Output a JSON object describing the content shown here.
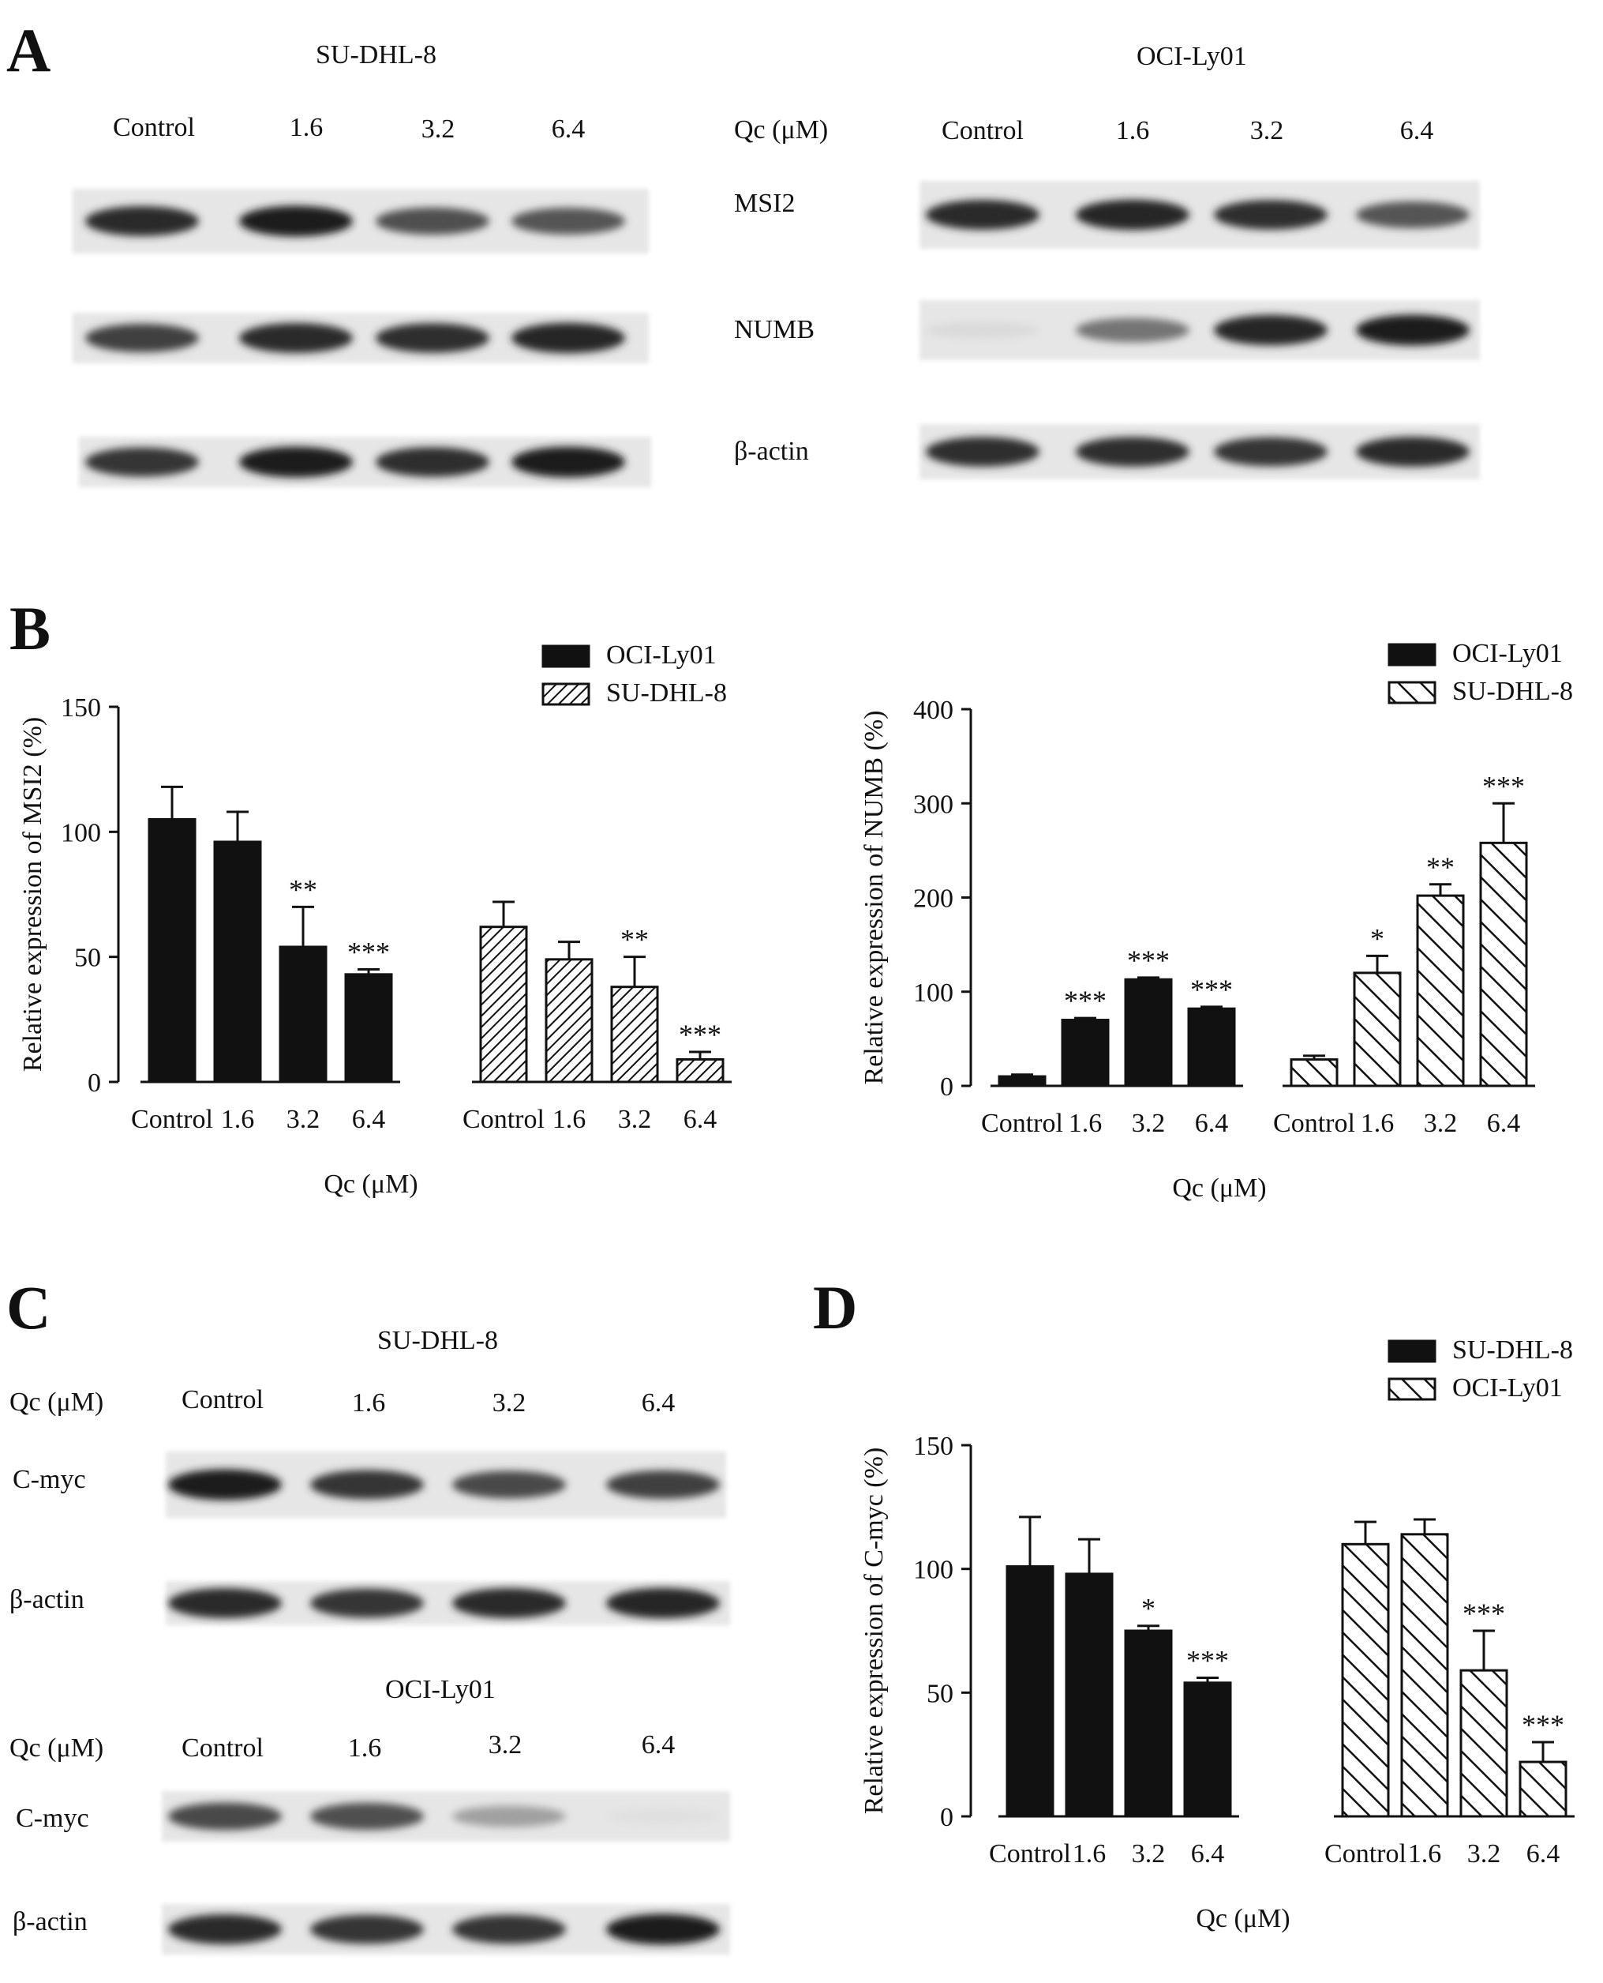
{
  "panels": {
    "A": {
      "letter": "A",
      "left": {
        "cell_line": "SU-DHL-8",
        "lanes": [
          "Control",
          "1.6",
          "3.2",
          "6.4"
        ],
        "band_intensity": {
          "MSI2": [
            0.9,
            0.95,
            0.72,
            0.7
          ],
          "NUMB": [
            0.8,
            0.9,
            0.88,
            0.92
          ],
          "beta_actin": [
            0.85,
            0.95,
            0.88,
            0.95
          ]
        }
      },
      "right": {
        "cell_line": "OCI-Ly01",
        "dose_label": "Qc (μM)",
        "lanes": [
          "Control",
          "1.6",
          "3.2",
          "6.4"
        ],
        "band_intensity": {
          "MSI2": [
            0.9,
            0.92,
            0.88,
            0.7
          ],
          "NUMB": [
            0.08,
            0.55,
            0.92,
            0.95
          ],
          "beta_actin": [
            0.88,
            0.88,
            0.85,
            0.9
          ]
        }
      },
      "proteins": [
        "MSI2",
        "NUMB",
        "β-actin"
      ]
    },
    "C": {
      "letter": "C",
      "dose_label": "Qc (μM)",
      "top": {
        "cell_line": "SU-DHL-8",
        "lanes": [
          "Control",
          "1.6",
          "3.2",
          "6.4"
        ],
        "band_intensity": {
          "C_myc": [
            0.95,
            0.85,
            0.75,
            0.8
          ],
          "beta_actin": [
            0.9,
            0.85,
            0.9,
            0.92
          ]
        }
      },
      "bottom": {
        "cell_line": "OCI-Ly01",
        "lanes": [
          "Control",
          "1.6",
          "3.2",
          "6.4"
        ],
        "band_intensity": {
          "C_myc": [
            0.75,
            0.72,
            0.35,
            0.05
          ],
          "beta_actin": [
            0.9,
            0.85,
            0.85,
            0.95
          ]
        }
      },
      "proteins": [
        "C-myc",
        "β-actin"
      ]
    }
  },
  "chart_data": [
    {
      "panel": "B",
      "letter": "B",
      "type": "bar",
      "ylabel": "Relative expression of MSI2 (%)",
      "xlabel": "Qc (μM)",
      "ylim": [
        0,
        150
      ],
      "yticks": [
        0,
        50,
        100,
        150
      ],
      "categories": [
        "Control",
        "1.6",
        "3.2",
        "6.4"
      ],
      "series": [
        {
          "name": "OCI-Ly01",
          "fill": "solid",
          "values": [
            105,
            96,
            54,
            43
          ],
          "errors": [
            13,
            12,
            16,
            2
          ],
          "stars": [
            "",
            "",
            "**",
            "***"
          ]
        },
        {
          "name": "SU-DHL-8",
          "fill": "hatch-dense",
          "values": [
            62,
            49,
            38,
            9
          ],
          "errors": [
            10,
            7,
            12,
            3
          ],
          "stars": [
            "",
            "",
            "**",
            "***"
          ]
        }
      ]
    },
    {
      "panel": "B-right",
      "type": "bar",
      "ylabel": "Relative expression of NUMB (%)",
      "xlabel": "Qc (μM)",
      "ylim": [
        0,
        400
      ],
      "yticks": [
        0,
        100,
        200,
        300,
        400
      ],
      "categories": [
        "Control",
        "1.6",
        "3.2",
        "6.4"
      ],
      "series": [
        {
          "name": "OCI-Ly01",
          "fill": "solid",
          "values": [
            10,
            70,
            113,
            82
          ],
          "errors": [
            2,
            2,
            2,
            2
          ],
          "stars": [
            "",
            "***",
            "***",
            "***"
          ]
        },
        {
          "name": "SU-DHL-8",
          "fill": "hatch",
          "values": [
            28,
            120,
            202,
            258
          ],
          "errors": [
            4,
            18,
            12,
            42
          ],
          "stars": [
            "",
            "*",
            "**",
            "***"
          ]
        }
      ]
    },
    {
      "panel": "D",
      "letter": "D",
      "type": "bar",
      "ylabel": "Relative expression of C-myc (%)",
      "xlabel": "Qc (μM)",
      "ylim": [
        0,
        150
      ],
      "yticks": [
        0,
        50,
        100,
        150
      ],
      "categories": [
        "Control",
        "1.6",
        "3.2",
        "6.4"
      ],
      "series": [
        {
          "name": "SU-DHL-8",
          "fill": "solid",
          "values": [
            101,
            98,
            75,
            54
          ],
          "errors": [
            20,
            14,
            2,
            2
          ],
          "stars": [
            "",
            "",
            "*",
            "***"
          ]
        },
        {
          "name": "OCI-Ly01",
          "fill": "hatch",
          "values": [
            110,
            114,
            59,
            22
          ],
          "errors": [
            9,
            6,
            16,
            8
          ],
          "stars": [
            "",
            "",
            "***",
            "***"
          ]
        }
      ]
    }
  ]
}
